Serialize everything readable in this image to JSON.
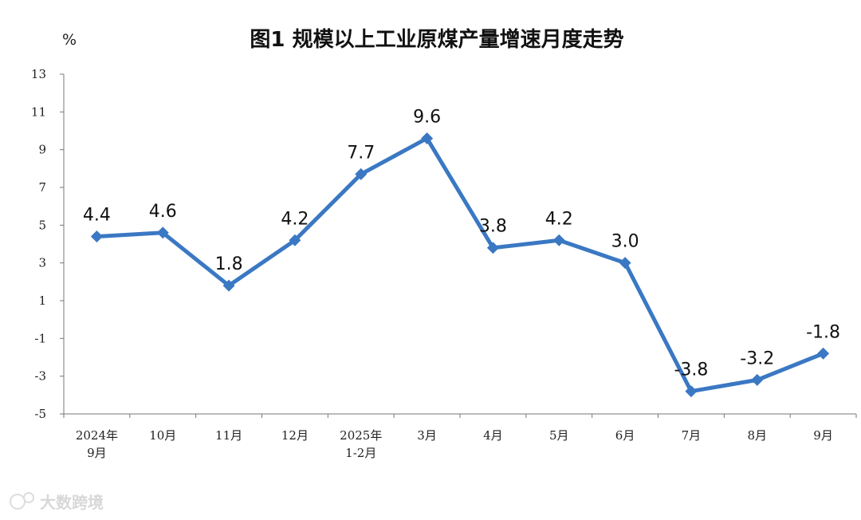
{
  "chart_data": {
    "type": "line",
    "title": "图1  规模以上工业原煤产量增速月度走势",
    "ylabel": "%",
    "ylim": [
      -5,
      13
    ],
    "yticks": [
      "13",
      "11",
      "9",
      "7",
      "5",
      "3",
      "1",
      "-1",
      "-3",
      "-5"
    ],
    "categories": [
      [
        "2024年",
        "9月"
      ],
      [
        "10月"
      ],
      [
        "11月"
      ],
      [
        "12月"
      ],
      [
        "2025年",
        "1-2月"
      ],
      [
        "3月"
      ],
      [
        "4月"
      ],
      [
        "5月"
      ],
      [
        "6月"
      ],
      [
        "7月"
      ],
      [
        "8月"
      ],
      [
        "9月"
      ]
    ],
    "series": [
      {
        "values": [
          4.4,
          4.6,
          1.8,
          4.2,
          7.7,
          9.6,
          3.8,
          4.2,
          3.0,
          -3.8,
          -3.2,
          -1.8
        ],
        "labels": [
          "4.4",
          "4.6",
          "1.8",
          "4.2",
          "7.7",
          "9.6",
          "3.8",
          "4.2",
          "3.0",
          "-3.8",
          "-3.2",
          "-1.8"
        ],
        "color": "#3a78c3"
      }
    ],
    "grid": false,
    "legend": "none"
  },
  "watermark": {
    "text": "大数跨境",
    "icon": "logo-icon"
  }
}
